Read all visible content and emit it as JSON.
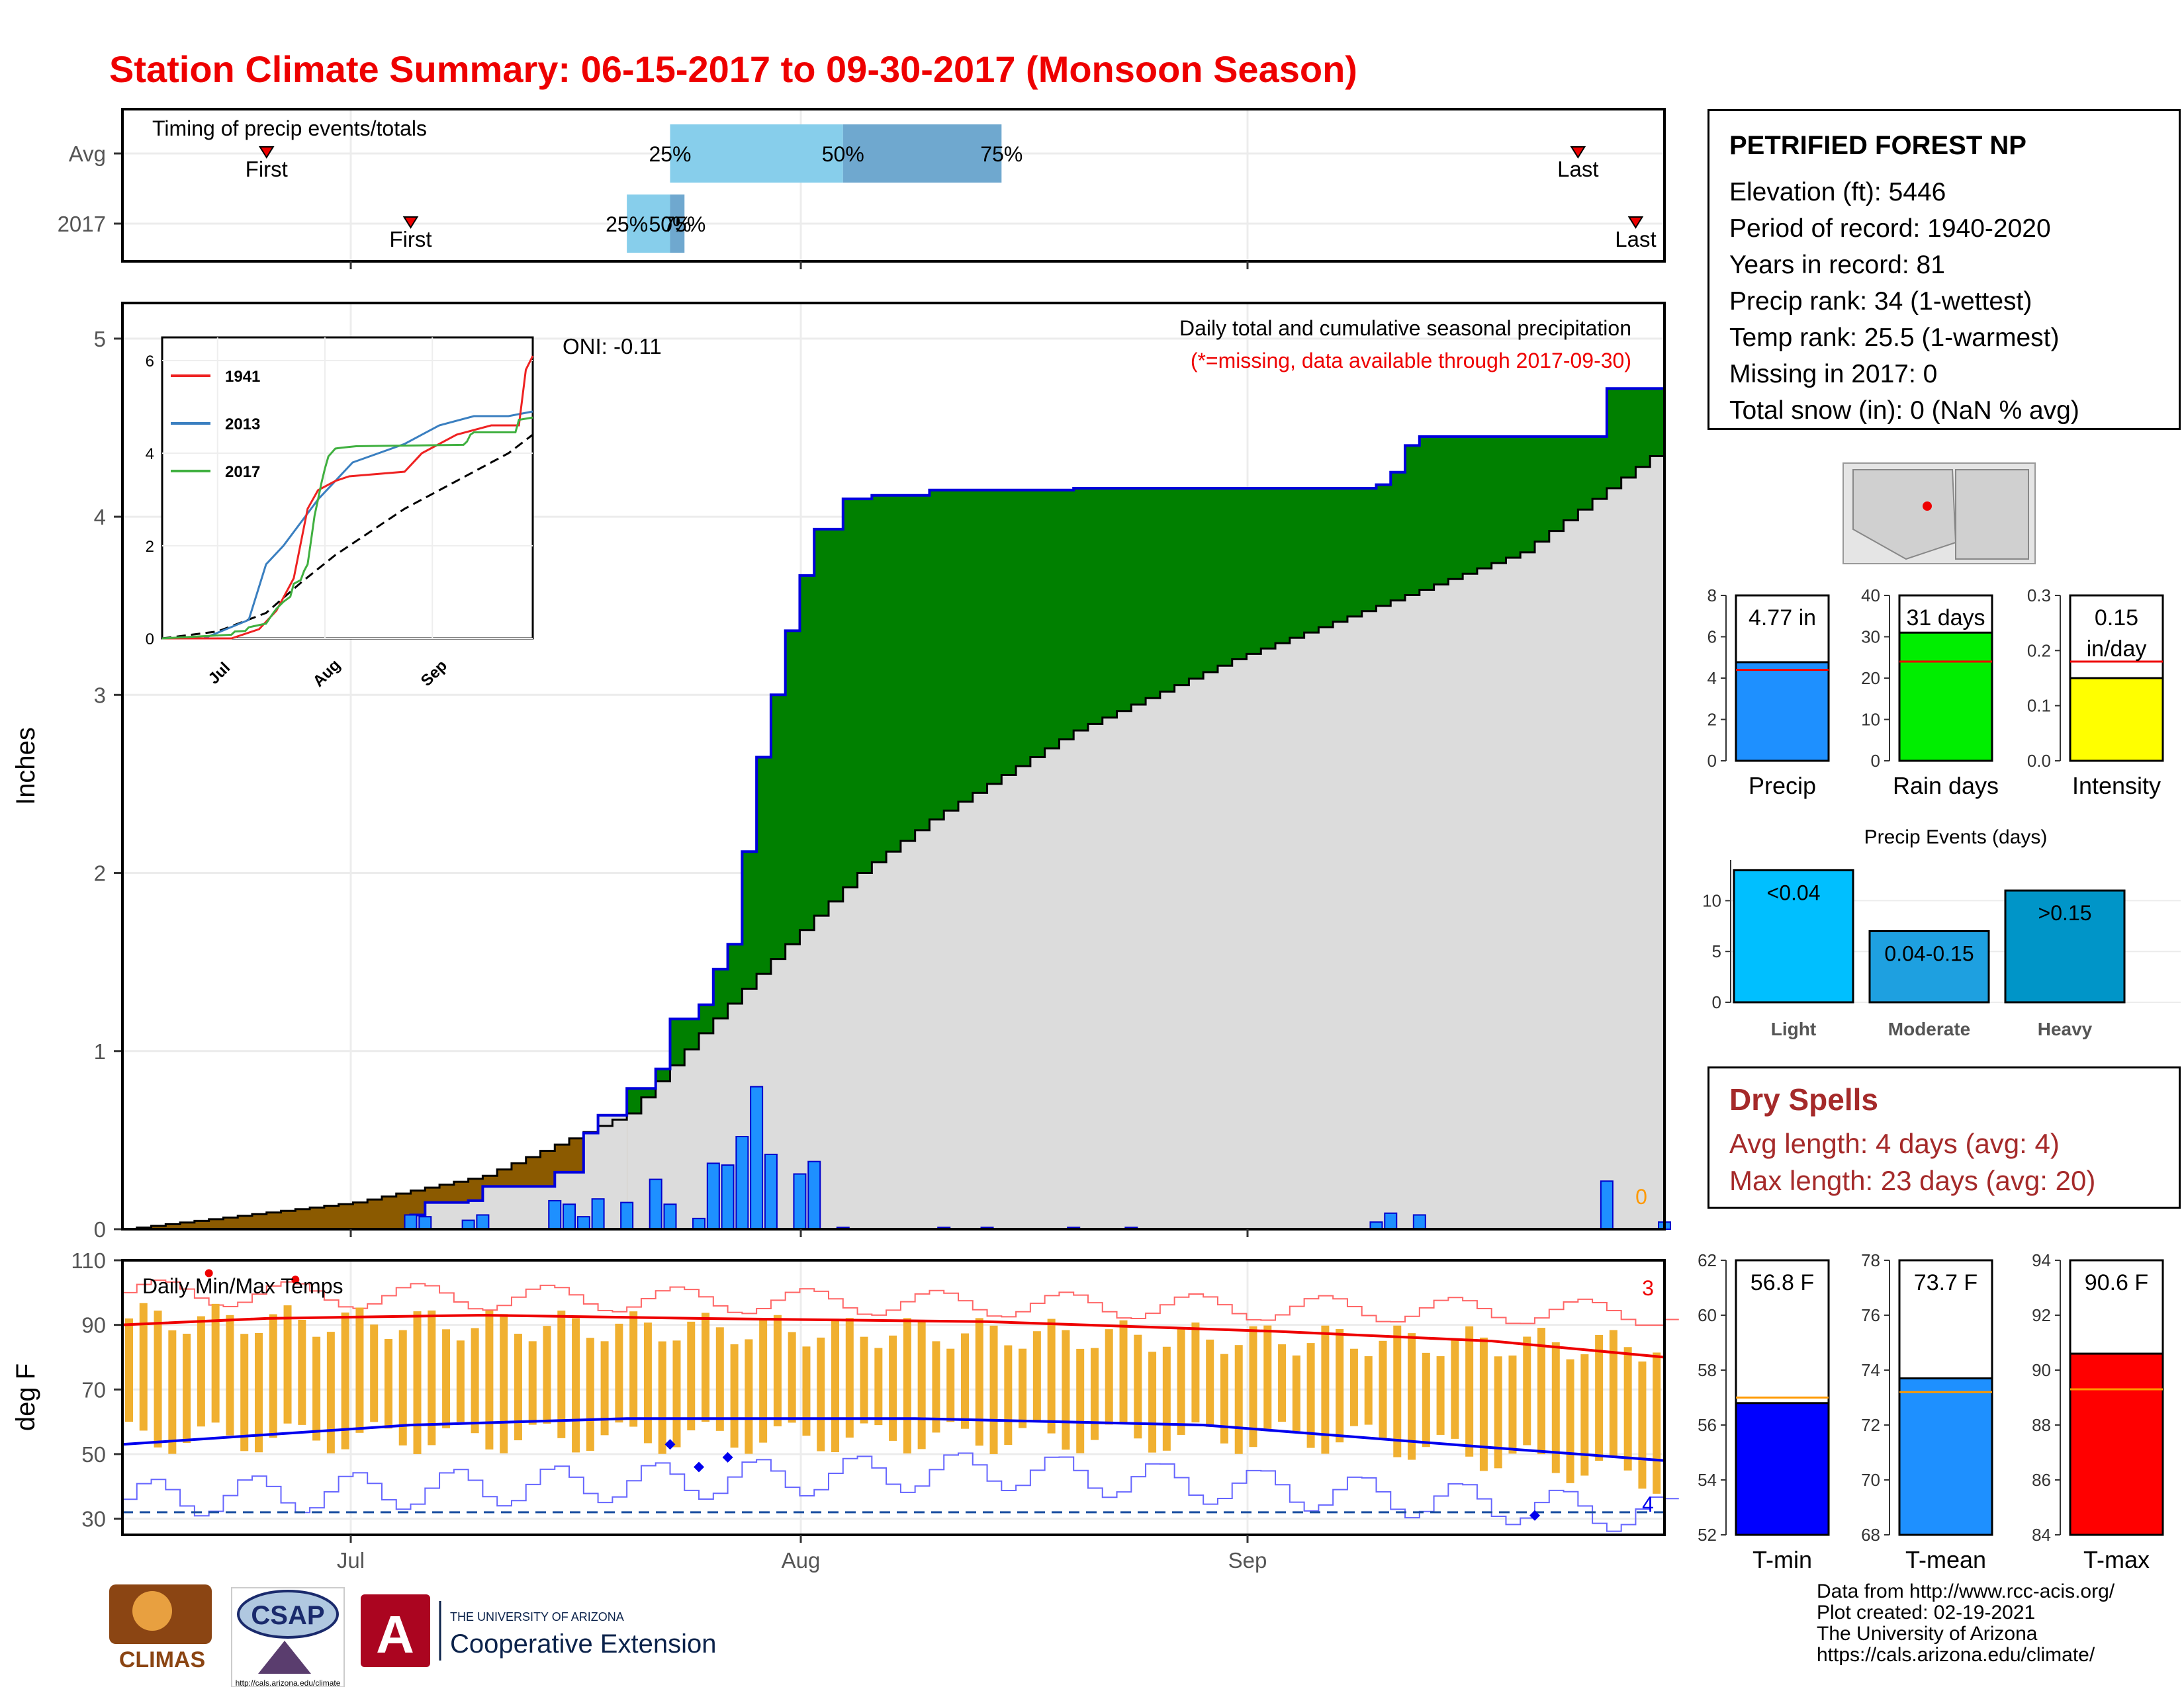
{
  "title": "Station Climate Summary: 06-15-2017 to 09-30-2017 (Monsoon Season)",
  "colors": {
    "title": "#ee0000",
    "precip_green": "#008000",
    "precip_brown": "#8b5a00",
    "avg_gray": "#e0e0e0",
    "daily_bar": "#1e90ff",
    "tmax_line": "#ff0000",
    "tmin_line": "#0000ff",
    "temp_bar": "#f0b030"
  },
  "station": {
    "name": "PETRIFIED FOREST NP",
    "lines": [
      "Elevation (ft): 5446",
      "Period of record: 1940-2020",
      "Years in record: 81",
      "Precip rank: 34 (1-wettest)",
      "Temp rank: 25.5 (1-warmest)",
      "Missing in 2017: 0",
      "Total snow (in): 0 (NaN % avg)"
    ]
  },
  "timing": {
    "panel_label": "Timing of precip events/totals",
    "rows": [
      "Avg",
      "2017"
    ],
    "first_label": "First",
    "last_label": "Last",
    "pct_labels": [
      "25%",
      "50%",
      "75%"
    ],
    "avg": {
      "first": "06-25",
      "p25": "07-23",
      "p50": "08-04",
      "p75": "08-15",
      "last": "09-24"
    },
    "y2017": {
      "first": "07-05",
      "p25": "07-20",
      "p50": "07-23",
      "p75": "07-24",
      "last": "09-28"
    }
  },
  "precip_panel": {
    "ylabel": "Inches",
    "annotation_main": "Daily total and cumulative seasonal precipitation",
    "annotation_missing": "(*=missing, data available through 2017-09-30)",
    "oni": "ONI: -0.11",
    "missing_count": "0",
    "yticks": [
      "0",
      "1",
      "2",
      "3",
      "4",
      "5"
    ],
    "xticks": [
      "Jul",
      "Aug",
      "Sep"
    ]
  },
  "inset": {
    "yticks": [
      "0",
      "2",
      "4",
      "6"
    ],
    "xticks": [
      "Jul",
      "Aug",
      "Sep"
    ],
    "legend": [
      "1941",
      "2013",
      "2017"
    ],
    "legend_colors": [
      "#ee2222",
      "#3a7fc0",
      "#40b040"
    ]
  },
  "temp_panel": {
    "ylabel": "deg F",
    "label": "Daily Min/Max Temps",
    "yticks": [
      "30",
      "50",
      "70",
      "90",
      "110"
    ],
    "max_records": "3",
    "min_records": "4"
  },
  "bars_precip": [
    {
      "name": "Precip",
      "value_label": "4.77 in",
      "value": 4.77,
      "avg": 4.4,
      "yticks": [
        "0",
        "2",
        "4",
        "6",
        "8"
      ],
      "ymax": 8,
      "color": "#1e90ff"
    },
    {
      "name": "Rain days",
      "value_label": "31 days",
      "value": 31,
      "avg": 24,
      "yticks": [
        "0",
        "10",
        "20",
        "30",
        "40"
      ],
      "ymax": 40,
      "color": "#00ee00"
    },
    {
      "name": "Intensity",
      "value_label": "0.15",
      "value_label2": "in/day",
      "value": 0.15,
      "avg": 0.18,
      "yticks": [
        "0.0",
        "0.1",
        "0.2",
        "0.3"
      ],
      "ymax": 0.3,
      "color": "#ffff00"
    }
  ],
  "events": {
    "title": "Precip Events (days)",
    "yticks": [
      "0",
      "5",
      "10"
    ],
    "categories": [
      "Light",
      "Moderate",
      "Heavy"
    ],
    "labels": [
      "<0.04",
      "0.04-0.15",
      ">0.15"
    ],
    "values": [
      13,
      7,
      11
    ],
    "colors": [
      "#00bfff",
      "#1ea0e0",
      "#0095c8"
    ]
  },
  "dry": {
    "title": "Dry Spells",
    "avg_line": "Avg length: 4 days (avg: 4)",
    "max_line": "Max length: 23 days (avg: 20)"
  },
  "bars_temp": [
    {
      "name": "T-min",
      "value_label": "56.8 F",
      "value": 56.8,
      "avg": 57.0,
      "ymin": 52,
      "ymax": 62,
      "yticks": [
        "52",
        "54",
        "56",
        "58",
        "60",
        "62"
      ],
      "color": "#0000ff"
    },
    {
      "name": "T-mean",
      "value_label": "73.7 F",
      "value": 73.7,
      "avg": 73.2,
      "ymin": 68,
      "ymax": 78,
      "yticks": [
        "68",
        "70",
        "72",
        "74",
        "76",
        "78"
      ],
      "color": "#1e90ff"
    },
    {
      "name": "T-max",
      "value_label": "90.6 F",
      "value": 90.6,
      "avg": 89.3,
      "ymin": 84,
      "ymax": 94,
      "yticks": [
        "84",
        "86",
        "88",
        "90",
        "92",
        "94"
      ],
      "color": "#ff0000"
    }
  ],
  "credits": [
    "Data from http://www.rcc-acis.org/",
    "Plot created: 02-19-2021",
    "The University of Arizona",
    "https://cals.arizona.edu/climate/"
  ],
  "logos": {
    "climas": "CLIMAS",
    "csap": "CSAP",
    "csap_url": "http://cals.arizona.edu/climate",
    "ua_small": "THE UNIVERSITY OF ARIZONA",
    "ua_big": "Cooperative Extension",
    "ua_letter": "A"
  },
  "chart_data": [
    {
      "type": "area",
      "title": "Daily total and cumulative seasonal precipitation",
      "ylabel": "Inches",
      "ylim": [
        0,
        5.2
      ],
      "xlim": [
        "2017-06-15",
        "2017-09-30"
      ],
      "cumulative_2017": [
        [
          "2017-06-15",
          0
        ],
        [
          "2017-07-05",
          0.08
        ],
        [
          "2017-07-06",
          0.15
        ],
        [
          "2017-07-09",
          0.16
        ],
        [
          "2017-07-10",
          0.24
        ],
        [
          "2017-07-15",
          0.32
        ],
        [
          "2017-07-17",
          0.54
        ],
        [
          "2017-07-18",
          0.64
        ],
        [
          "2017-07-20",
          0.79
        ],
        [
          "2017-07-22",
          0.9
        ],
        [
          "2017-07-23",
          1.18
        ],
        [
          "2017-07-25",
          1.26
        ],
        [
          "2017-07-26",
          1.46
        ],
        [
          "2017-07-27",
          1.6
        ],
        [
          "2017-07-28",
          2.12
        ],
        [
          "2017-07-29",
          2.65
        ],
        [
          "2017-07-30",
          3.0
        ],
        [
          "2017-07-31",
          3.36
        ],
        [
          "2017-08-01",
          3.67
        ],
        [
          "2017-08-02",
          3.93
        ],
        [
          "2017-08-04",
          4.1
        ],
        [
          "2017-08-06",
          4.12
        ],
        [
          "2017-08-10",
          4.15
        ],
        [
          "2017-08-20",
          4.16
        ],
        [
          "2017-09-10",
          4.18
        ],
        [
          "2017-09-11",
          4.25
        ],
        [
          "2017-09-12",
          4.4
        ],
        [
          "2017-09-13",
          4.45
        ],
        [
          "2017-09-25",
          4.45
        ],
        [
          "2017-09-26",
          4.72
        ],
        [
          "2017-09-30",
          4.77
        ]
      ],
      "average_cumulative": [
        [
          "2017-06-15",
          0
        ],
        [
          "2017-07-01",
          0.15
        ],
        [
          "2017-07-10",
          0.3
        ],
        [
          "2017-07-20",
          0.65
        ],
        [
          "2017-07-25",
          1.1
        ],
        [
          "2017-07-31",
          1.6
        ],
        [
          "2017-08-05",
          2.0
        ],
        [
          "2017-08-10",
          2.3
        ],
        [
          "2017-08-20",
          2.8
        ],
        [
          "2017-08-31",
          3.2
        ],
        [
          "2017-09-10",
          3.5
        ],
        [
          "2017-09-20",
          3.8
        ],
        [
          "2017-09-30",
          4.4
        ]
      ],
      "daily_precip": [
        [
          "2017-07-05",
          0.08
        ],
        [
          "2017-07-06",
          0.07
        ],
        [
          "2017-07-09",
          0.05
        ],
        [
          "2017-07-10",
          0.08
        ],
        [
          "2017-07-15",
          0.16
        ],
        [
          "2017-07-16",
          0.14
        ],
        [
          "2017-07-17",
          0.07
        ],
        [
          "2017-07-18",
          0.17
        ],
        [
          "2017-07-20",
          0.15
        ],
        [
          "2017-07-22",
          0.28
        ],
        [
          "2017-07-23",
          0.14
        ],
        [
          "2017-07-25",
          0.06
        ],
        [
          "2017-07-26",
          0.37
        ],
        [
          "2017-07-27",
          0.36
        ],
        [
          "2017-07-28",
          0.52
        ],
        [
          "2017-07-29",
          0.8
        ],
        [
          "2017-07-30",
          0.42
        ],
        [
          "2017-08-01",
          0.31
        ],
        [
          "2017-08-02",
          0.38
        ],
        [
          "2017-08-04",
          0.01
        ],
        [
          "2017-08-11",
          0.01
        ],
        [
          "2017-08-14",
          0.01
        ],
        [
          "2017-08-20",
          0.01
        ],
        [
          "2017-08-24",
          0.01
        ],
        [
          "2017-09-10",
          0.04
        ],
        [
          "2017-09-11",
          0.09
        ],
        [
          "2017-09-13",
          0.08
        ],
        [
          "2017-09-26",
          0.27
        ],
        [
          "2017-09-30",
          0.04
        ]
      ]
    },
    {
      "type": "line",
      "title": "Daily Min/Max Temps",
      "ylabel": "deg F",
      "ylim": [
        25,
        110
      ],
      "xlim": [
        "2017-06-15",
        "2017-09-30"
      ],
      "series": [
        {
          "name": "tmax_avg",
          "values": [
            [
              0,
              90
            ],
            [
              10,
              92
            ],
            [
              25,
              93
            ],
            [
              40,
              92
            ],
            [
              60,
              91
            ],
            [
              80,
              88
            ],
            [
              95,
              85
            ],
            [
              107,
              80
            ]
          ]
        },
        {
          "name": "tmin_avg",
          "values": [
            [
              0,
              53
            ],
            [
              10,
              56
            ],
            [
              20,
              59
            ],
            [
              35,
              61
            ],
            [
              55,
              61
            ],
            [
              75,
              59
            ],
            [
              95,
              52
            ],
            [
              107,
              48
            ]
          ]
        }
      ]
    }
  ]
}
